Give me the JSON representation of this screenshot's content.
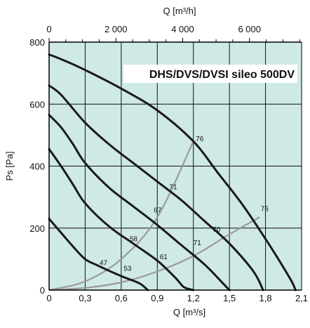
{
  "chart_data": {
    "type": "line",
    "title": "DHS/DVS/DVSI sileo 500DV",
    "xlabel": "Q [m³/s]",
    "x2label": "Q [m³/h]",
    "ylabel": "Ps [Pa]",
    "xlim": [
      0,
      2.1
    ],
    "ylim": [
      0,
      800
    ],
    "x2lim": [
      0,
      7560
    ],
    "x_ticks": [
      "0",
      "0,3",
      "0,6",
      "0,9",
      "1,2",
      "1,5",
      "1,8",
      "2,1"
    ],
    "x_tick_values": [
      0,
      0.3,
      0.6,
      0.9,
      1.2,
      1.5,
      1.8,
      2.1
    ],
    "x2_ticks": [
      "0",
      "2 000",
      "4 000",
      "6 000"
    ],
    "x2_tick_values": [
      0,
      2000,
      4000,
      6000
    ],
    "y_ticks": [
      "0",
      "200",
      "400",
      "600",
      "800"
    ],
    "y_tick_values": [
      0,
      200,
      400,
      600,
      800
    ],
    "grid": true,
    "series": [
      {
        "values": [
          [
            0,
            760
          ],
          [
            0.1,
            745
          ],
          [
            0.3,
            710
          ],
          [
            0.6,
            650
          ],
          [
            0.9,
            580
          ],
          [
            1.2,
            480
          ],
          [
            1.4,
            380
          ],
          [
            1.6,
            280
          ],
          [
            1.8,
            165
          ],
          [
            2.0,
            40
          ],
          [
            2.05,
            0
          ]
        ]
      },
      {
        "values": [
          [
            0,
            660
          ],
          [
            0.1,
            630
          ],
          [
            0.3,
            540
          ],
          [
            0.5,
            470
          ],
          [
            0.7,
            410
          ],
          [
            0.9,
            350
          ],
          [
            1.1,
            290
          ],
          [
            1.3,
            220
          ],
          [
            1.5,
            150
          ],
          [
            1.7,
            60
          ],
          [
            1.78,
            0
          ]
        ]
      },
      {
        "values": [
          [
            0,
            565
          ],
          [
            0.1,
            525
          ],
          [
            0.2,
            470
          ],
          [
            0.3,
            410
          ],
          [
            0.5,
            330
          ],
          [
            0.7,
            270
          ],
          [
            0.9,
            210
          ],
          [
            1.1,
            145
          ],
          [
            1.3,
            80
          ],
          [
            1.45,
            20
          ],
          [
            1.5,
            0
          ]
        ]
      },
      {
        "values": [
          [
            0,
            455
          ],
          [
            0.1,
            400
          ],
          [
            0.2,
            340
          ],
          [
            0.3,
            280
          ],
          [
            0.5,
            205
          ],
          [
            0.7,
            150
          ],
          [
            0.9,
            95
          ],
          [
            1.05,
            40
          ],
          [
            1.12,
            10
          ],
          [
            1.2,
            0
          ]
        ]
      },
      {
        "values": [
          [
            0,
            230
          ],
          [
            0.1,
            185
          ],
          [
            0.2,
            140
          ],
          [
            0.3,
            100
          ],
          [
            0.4,
            80
          ],
          [
            0.6,
            45
          ],
          [
            0.75,
            22
          ],
          [
            0.82,
            0
          ]
        ]
      }
    ],
    "efficiency_lines": [
      {
        "values": [
          [
            0,
            0
          ],
          [
            0.3,
            28
          ],
          [
            0.6,
            100
          ],
          [
            0.9,
            235
          ],
          [
            1.2,
            480
          ]
        ]
      },
      {
        "values": [
          [
            0,
            0
          ],
          [
            0.3,
            7
          ],
          [
            0.6,
            25
          ],
          [
            0.9,
            60
          ],
          [
            1.2,
            110
          ],
          [
            1.5,
            180
          ],
          [
            1.75,
            235
          ]
        ]
      }
    ],
    "efficiency_labels": [
      {
        "text": "76",
        "x": 1.22,
        "y": 480
      },
      {
        "text": "71",
        "x": 1.0,
        "y": 325
      },
      {
        "text": "67",
        "x": 0.87,
        "y": 250
      },
      {
        "text": "58",
        "x": 0.67,
        "y": 158
      },
      {
        "text": "47",
        "x": 0.42,
        "y": 80
      },
      {
        "text": "76",
        "x": 1.76,
        "y": 255
      },
      {
        "text": "70",
        "x": 1.36,
        "y": 188
      },
      {
        "text": "71",
        "x": 1.2,
        "y": 145
      },
      {
        "text": "61",
        "x": 0.92,
        "y": 100
      },
      {
        "text": "53",
        "x": 0.62,
        "y": 62
      }
    ],
    "legend": "none"
  },
  "colors": {
    "plot_background": "#cfe9e6",
    "grid": "#111111",
    "curve": "#1a1a1a",
    "efficiency_line": "#9a9a9a",
    "title_background": "#ffffff"
  }
}
